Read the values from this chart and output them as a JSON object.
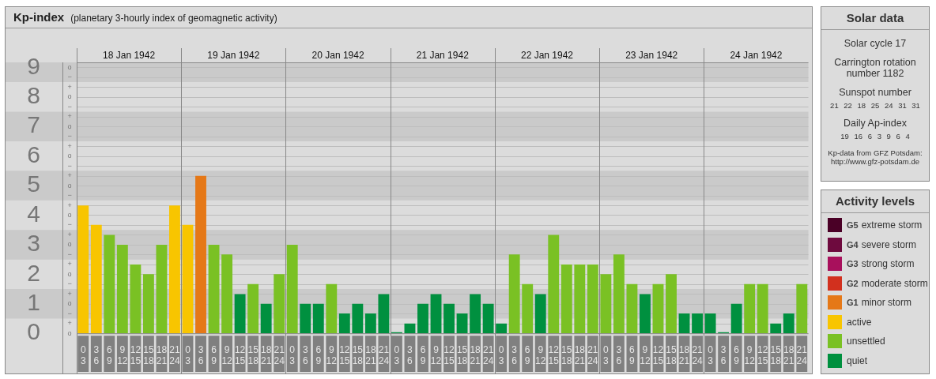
{
  "chart_data": [
    {
      "type": "bar",
      "title": "Kp-index",
      "subtitle": "(planetary 3-hourly index of geomagnetic activity)",
      "legend_title": "Activity levels",
      "legend": "right",
      "stacked": true,
      "grid": true,
      "annotations": [
        "18 Jan 1942",
        "19 Jan 1942",
        "20 Jan 1942",
        "21 Jan 1942",
        "22 Jan 1942",
        "23 Jan 1942",
        "24 Jan 1942",
        "o",
        "+",
        "−",
        "o",
        "+",
        "−",
        "o",
        "+",
        "−",
        "o",
        "+",
        "−",
        "o",
        "+",
        "−",
        "o",
        "+",
        "−",
        "o",
        "+",
        "−",
        "o",
        "+",
        "−",
        "o",
        "+",
        "−",
        "o"
      ],
      "bands": [
        {
          "axis": "y",
          "from": 0.5,
          "to": 1.5,
          "color": "#cacaca"
        },
        {
          "axis": "y",
          "from": 2.5,
          "to": 3.5,
          "color": "#cacaca"
        },
        {
          "axis": "y",
          "from": 4.5,
          "to": 5.5,
          "color": "#cacaca"
        },
        {
          "axis": "y",
          "from": 6.5,
          "to": 7.5,
          "color": "#cacaca"
        },
        {
          "axis": "y",
          "from": 8.5,
          "to": 9.17,
          "color": "#cacaca"
        }
      ],
      "categories": [
        "0 3",
        "3 6",
        "6 9",
        "9 12",
        "12 15",
        "15 18",
        "18 21",
        "21 24",
        "0 3",
        "3 6",
        "6 9",
        "9 12",
        "12 15",
        "15 18",
        "18 21",
        "21 24",
        "0 3",
        "3 6",
        "6 9",
        "9 12",
        "12 15",
        "15 18",
        "18 21",
        "21 24",
        "0 3",
        "3 6",
        "6 9",
        "9 12",
        "12 15",
        "15 18",
        "18 21",
        "21 24",
        "0 3",
        "3 6",
        "6 9",
        "9 12",
        "12 15",
        "15 18",
        "18 21",
        "21 24",
        "0 3",
        "3 6",
        "6 9",
        "9 12",
        "12 15",
        "15 18",
        "18 21",
        "21 24",
        "0 3",
        "3 6",
        "6 9",
        "9 12",
        "12 15",
        "15 18",
        "18 21",
        "21 24"
      ],
      "ylim": [
        0,
        9.17
      ],
      "yticks": [
        0,
        1,
        2,
        3,
        4,
        5,
        6,
        7,
        8,
        9
      ],
      "series": [
        {
          "name": "G5 extreme storm",
          "color": "#4a0026",
          "values": [
            null,
            null,
            null,
            null,
            null,
            null,
            null,
            null,
            null,
            null,
            null,
            null,
            null,
            null,
            null,
            null,
            null,
            null,
            null,
            null,
            null,
            null,
            null,
            null,
            null,
            null,
            null,
            null,
            null,
            null,
            null,
            null,
            null,
            null,
            null,
            null,
            null,
            null,
            null,
            null,
            null,
            null,
            null,
            null,
            null,
            null,
            null,
            null,
            null,
            null,
            null,
            null,
            null,
            null,
            null,
            null
          ]
        },
        {
          "name": "G4 severe storm",
          "color": "#6e0a3e",
          "values": [
            null,
            null,
            null,
            null,
            null,
            null,
            null,
            null,
            null,
            null,
            null,
            null,
            null,
            null,
            null,
            null,
            null,
            null,
            null,
            null,
            null,
            null,
            null,
            null,
            null,
            null,
            null,
            null,
            null,
            null,
            null,
            null,
            null,
            null,
            null,
            null,
            null,
            null,
            null,
            null,
            null,
            null,
            null,
            null,
            null,
            null,
            null,
            null,
            null,
            null,
            null,
            null,
            null,
            null,
            null,
            null
          ]
        },
        {
          "name": "G3 strong storm",
          "color": "#a8105c",
          "values": [
            null,
            null,
            null,
            null,
            null,
            null,
            null,
            null,
            null,
            null,
            null,
            null,
            null,
            null,
            null,
            null,
            null,
            null,
            null,
            null,
            null,
            null,
            null,
            null,
            null,
            null,
            null,
            null,
            null,
            null,
            null,
            null,
            null,
            null,
            null,
            null,
            null,
            null,
            null,
            null,
            null,
            null,
            null,
            null,
            null,
            null,
            null,
            null,
            null,
            null,
            null,
            null,
            null,
            null,
            null,
            null
          ]
        },
        {
          "name": "G2 moderate storm",
          "color": "#d2301e",
          "values": [
            null,
            null,
            null,
            null,
            null,
            null,
            null,
            null,
            null,
            null,
            null,
            null,
            null,
            null,
            null,
            null,
            null,
            null,
            null,
            null,
            null,
            null,
            null,
            null,
            null,
            null,
            null,
            null,
            null,
            null,
            null,
            null,
            null,
            null,
            null,
            null,
            null,
            null,
            null,
            null,
            null,
            null,
            null,
            null,
            null,
            null,
            null,
            null,
            null,
            null,
            null,
            null,
            null,
            null,
            null,
            null
          ]
        },
        {
          "name": "G1 minor storm",
          "color": "#e57817",
          "values": [
            null,
            null,
            null,
            null,
            null,
            null,
            null,
            null,
            null,
            5.33,
            null,
            null,
            null,
            null,
            null,
            null,
            null,
            null,
            null,
            null,
            null,
            null,
            null,
            null,
            null,
            null,
            null,
            null,
            null,
            null,
            null,
            null,
            null,
            null,
            null,
            null,
            null,
            null,
            null,
            null,
            null,
            null,
            null,
            null,
            null,
            null,
            null,
            null,
            null,
            null,
            null,
            null,
            null,
            null,
            null,
            null
          ]
        },
        {
          "name": "active",
          "color": "#f8c500",
          "values": [
            4.33,
            3.67,
            null,
            null,
            null,
            null,
            null,
            4.33,
            3.67,
            null,
            null,
            null,
            null,
            null,
            null,
            null,
            null,
            null,
            null,
            null,
            null,
            null,
            null,
            null,
            null,
            null,
            null,
            null,
            null,
            null,
            null,
            null,
            null,
            null,
            null,
            null,
            null,
            null,
            null,
            null,
            null,
            null,
            null,
            null,
            null,
            null,
            null,
            null,
            null,
            null,
            null,
            null,
            null,
            null,
            null,
            null
          ]
        },
        {
          "name": "unsettled",
          "color": "#7ac124",
          "values": [
            null,
            null,
            3.33,
            3,
            2.33,
            2,
            3,
            null,
            null,
            null,
            3,
            2.67,
            null,
            1.67,
            null,
            2,
            3,
            null,
            null,
            1.67,
            null,
            null,
            null,
            null,
            null,
            null,
            null,
            null,
            null,
            null,
            null,
            null,
            null,
            2.67,
            1.67,
            null,
            3.33,
            2.33,
            2.33,
            2.33,
            2,
            2.67,
            1.67,
            null,
            1.67,
            2,
            null,
            null,
            null,
            null,
            null,
            1.67,
            1.67,
            null,
            null,
            1.67
          ]
        },
        {
          "name": "quiet",
          "color": "#00903f",
          "values": [
            null,
            null,
            null,
            null,
            null,
            null,
            null,
            null,
            null,
            null,
            null,
            null,
            1.33,
            null,
            1,
            null,
            null,
            1,
            1,
            null,
            0.67,
            1,
            0.67,
            1.33,
            0,
            0.33,
            1,
            1.33,
            1,
            0.67,
            1.33,
            1,
            0.33,
            null,
            null,
            1.33,
            null,
            null,
            null,
            null,
            null,
            null,
            null,
            1.33,
            null,
            null,
            0.67,
            0.67,
            0.67,
            0,
            1,
            null,
            null,
            0.33,
            0.67,
            null
          ]
        }
      ]
    },
    {
      "type": "other",
      "title": "Solar data",
      "annotations": [
        "Solar cycle 17",
        "Carrington rotation number 1182",
        "Sunspot number",
        "21 22 18 25 24 31 31",
        "Daily Ap-index",
        "19 16 6 3 9 6 4",
        "Kp-data from GFZ Potsdam: http://www.gfz-potsdam.de"
      ]
    }
  ]
}
